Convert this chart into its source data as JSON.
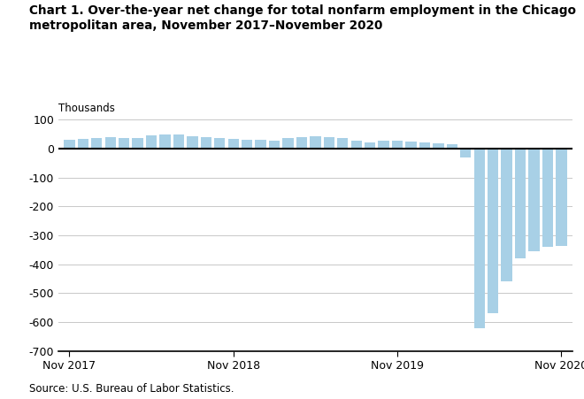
{
  "title": "Chart 1. Over-the-year net change for total nonfarm employment in the Chicago\nmetropolitan area, November 2017–November 2020",
  "ylabel": "Thousands",
  "source": "Source: U.S. Bureau of Labor Statistics.",
  "bar_color": "#a8d0e6",
  "background_color": "#ffffff",
  "grid_color": "#c8c8c8",
  "zero_line_color": "#000000",
  "ylim": [
    -700,
    100
  ],
  "yticks": [
    100,
    0,
    -100,
    -200,
    -300,
    -400,
    -500,
    -600,
    -700
  ],
  "xtick_labels": [
    "Nov 2017",
    "Nov 2018",
    "Nov 2019",
    "Nov 2020"
  ],
  "xtick_positions": [
    0,
    12,
    24,
    36
  ],
  "values": [
    30,
    35,
    38,
    40,
    38,
    36,
    45,
    50,
    48,
    43,
    40,
    37,
    35,
    32,
    30,
    29,
    36,
    40,
    42,
    40,
    36,
    28,
    22,
    26,
    28,
    25,
    22,
    18,
    14,
    -30,
    -620,
    -570,
    -460,
    -380,
    -355,
    -340,
    -335
  ]
}
